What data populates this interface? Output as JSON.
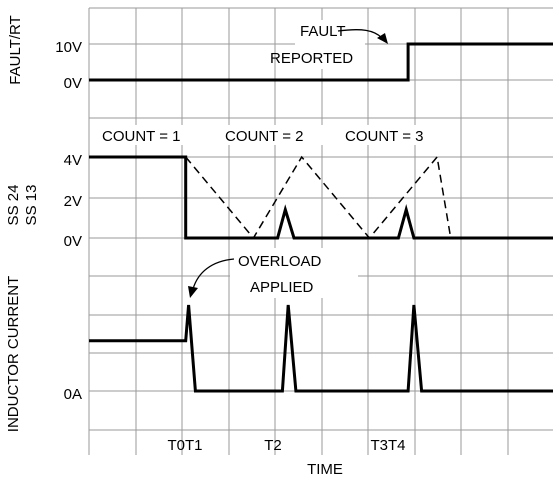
{
  "chart_data": {
    "type": "line",
    "xlabel": "TIME",
    "x_tick_labels": [
      {
        "label": "T0T1",
        "x": 0.81
      },
      {
        "label": "T2",
        "x": 1.75
      },
      {
        "label": "T3T4",
        "x": 2.96
      }
    ],
    "panels": [
      {
        "id": "fault",
        "ylabel": "FAULT/RT",
        "tick_labels": [
          "10V",
          "0V"
        ],
        "series": [
          {
            "name": "FAULT/RT",
            "style": "solid",
            "points": [
              [
                0,
                0
              ],
              [
                3.3,
                0
              ],
              [
                3.3,
                10
              ],
              [
                5,
                10
              ]
            ]
          }
        ],
        "annotations": [
          {
            "line1": "FAULT",
            "line2": "REPORTED"
          }
        ]
      },
      {
        "id": "ss",
        "ylabel_line1": "SS 24",
        "ylabel_line2": "SS 13",
        "tick_labels": [
          "4V",
          "2V",
          "0V"
        ],
        "series": [
          {
            "name": "SS 24",
            "style": "solid",
            "points": [
              [
                0,
                4
              ],
              [
                1,
                4
              ],
              [
                1,
                0
              ],
              [
                1.95,
                0
              ],
              [
                2.03,
                1.4
              ],
              [
                2.12,
                0
              ],
              [
                3.2,
                0
              ],
              [
                3.28,
                1.4
              ],
              [
                3.36,
                0
              ],
              [
                5,
                0
              ]
            ]
          },
          {
            "name": "SS 13",
            "style": "dashed",
            "points": [
              [
                1,
                4
              ],
              [
                1.7,
                0
              ],
              [
                2.2,
                4
              ],
              [
                2.9,
                0
              ],
              [
                3.6,
                4
              ],
              [
                3.74,
                0
              ]
            ]
          }
        ],
        "annotations": [
          {
            "label": "COUNT = 1"
          },
          {
            "label": "COUNT = 2"
          },
          {
            "label": "COUNT = 3"
          }
        ]
      },
      {
        "id": "current",
        "ylabel": "INDUCTOR CURRENT",
        "tick_labels": [
          "0A"
        ],
        "series": [
          {
            "name": "INDUCTOR CURRENT",
            "style": "solid",
            "points": [
              [
                0,
                0.7
              ],
              [
                1,
                0.7
              ],
              [
                1.03,
                1.2
              ],
              [
                1.1,
                0
              ],
              [
                2,
                0
              ],
              [
                2.06,
                1.2
              ],
              [
                2.14,
                0
              ],
              [
                3.3,
                0
              ],
              [
                3.36,
                1.2
              ],
              [
                3.44,
                0
              ],
              [
                5,
                0
              ]
            ]
          }
        ],
        "annotations": [
          {
            "line1": "OVERLOAD",
            "line2": "APPLIED"
          }
        ]
      }
    ]
  }
}
